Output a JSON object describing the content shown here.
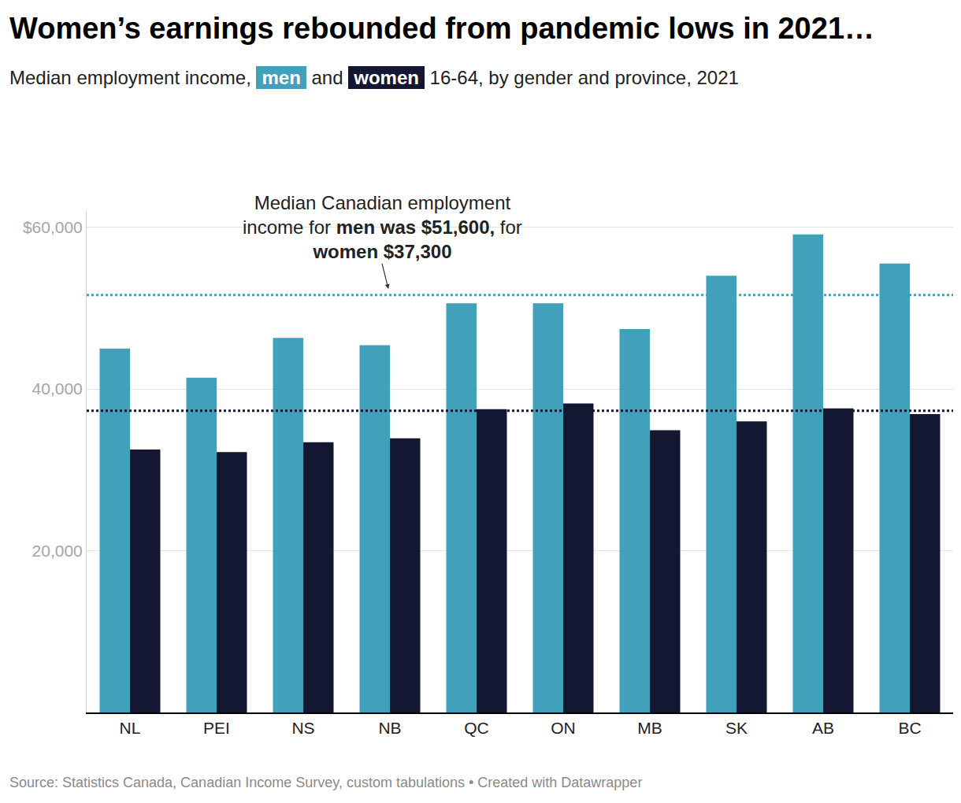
{
  "chart_data": {
    "type": "bar",
    "title": "Women’s earnings rebounded from pandemic lows in 2021…",
    "subtitle": "Median employment income, men and women 16-64, by gender and province, 2021",
    "source": "Source: Statistics Canada, Canadian Income Survey, custom tabulations • Created with Datawrapper",
    "categories": [
      "NL",
      "PEI",
      "NS",
      "NB",
      "QC",
      "ON",
      "MB",
      "SK",
      "AB",
      "BC"
    ],
    "series": [
      {
        "name": "men",
        "color": "#41a0ba",
        "values": [
          45000,
          41400,
          46300,
          45400,
          50600,
          50600,
          47400,
          54000,
          59100,
          55500
        ]
      },
      {
        "name": "women",
        "color": "#131731",
        "values": [
          32500,
          32200,
          33400,
          33900,
          37500,
          38200,
          34900,
          36000,
          37600,
          36900
        ]
      }
    ],
    "reference_lines": [
      {
        "name": "men",
        "value": 51600,
        "color": "#41a0ba",
        "line_style": "dotted"
      },
      {
        "name": "women",
        "value": 37300,
        "color": "#131731",
        "line_style": "dotted"
      }
    ],
    "annotation": {
      "lines": [
        "Median Canadian employment",
        "income for men was $51,600, for",
        "women $37,300"
      ],
      "bold": [
        "men was $51,600,",
        "women $37,300"
      ]
    },
    "ylim": [
      0,
      62000
    ],
    "yticks": [
      {
        "value": 20000,
        "label": "20,000"
      },
      {
        "value": 40000,
        "label": "40,000"
      },
      {
        "value": 60000,
        "label": "$60,000"
      }
    ],
    "grid": true
  }
}
